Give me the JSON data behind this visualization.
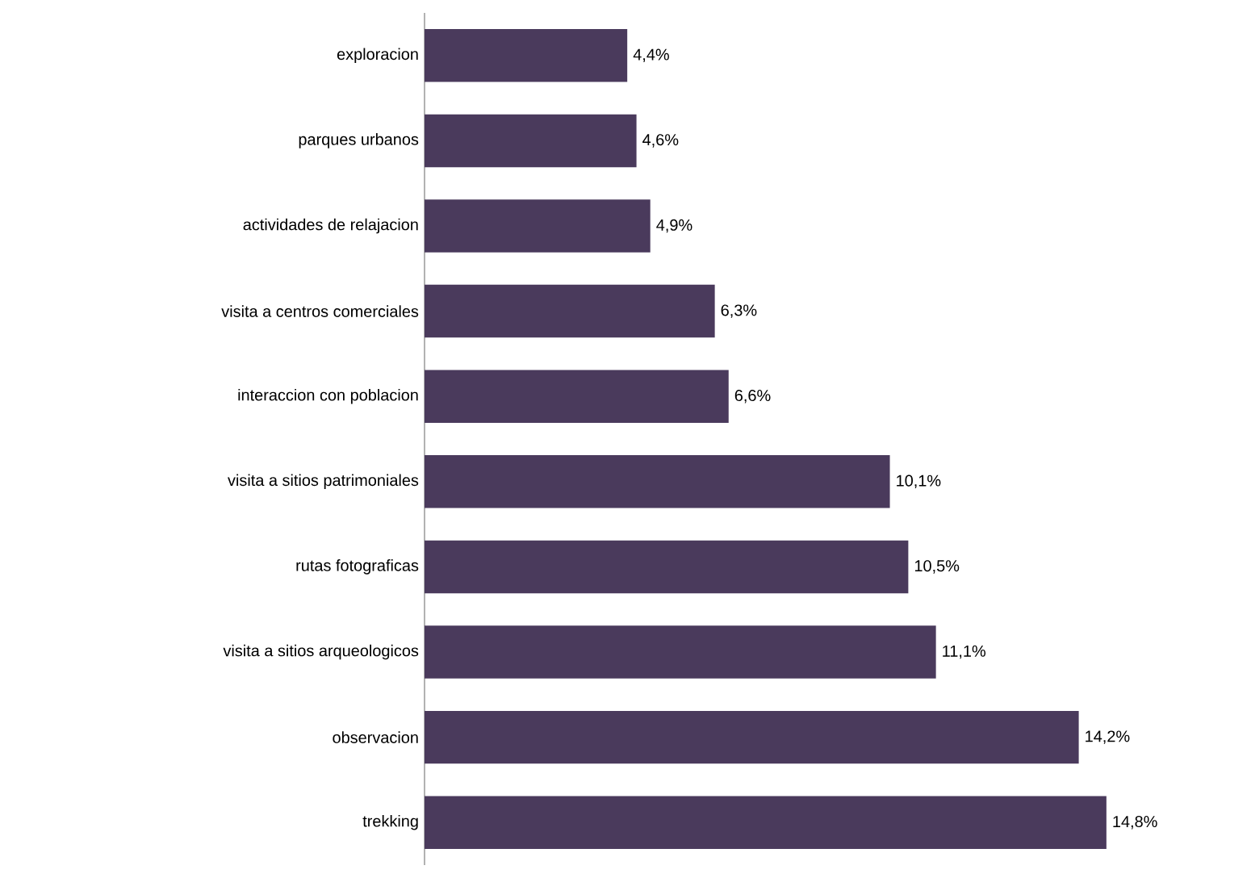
{
  "chart_data": {
    "type": "bar",
    "orientation": "horizontal",
    "color": "#4a3a5c",
    "categories": [
      "exploracion",
      "parques urbanos",
      "actividades de relajacion",
      "visita a centros comerciales",
      "interaccion con poblacion",
      "visita a sitios patrimoniales",
      "rutas fotograficas",
      "visita a sitios arqueologicos",
      "observacion",
      "trekking"
    ],
    "values": [
      4.4,
      4.6,
      4.9,
      6.3,
      6.6,
      10.1,
      10.5,
      11.1,
      14.2,
      14.8
    ],
    "value_labels": [
      "4,4%",
      "4,6%",
      "4,9%",
      "6,3%",
      "6,6%",
      "10,1%",
      "10,5%",
      "11,1%",
      "14,2%",
      "14,8%"
    ]
  }
}
